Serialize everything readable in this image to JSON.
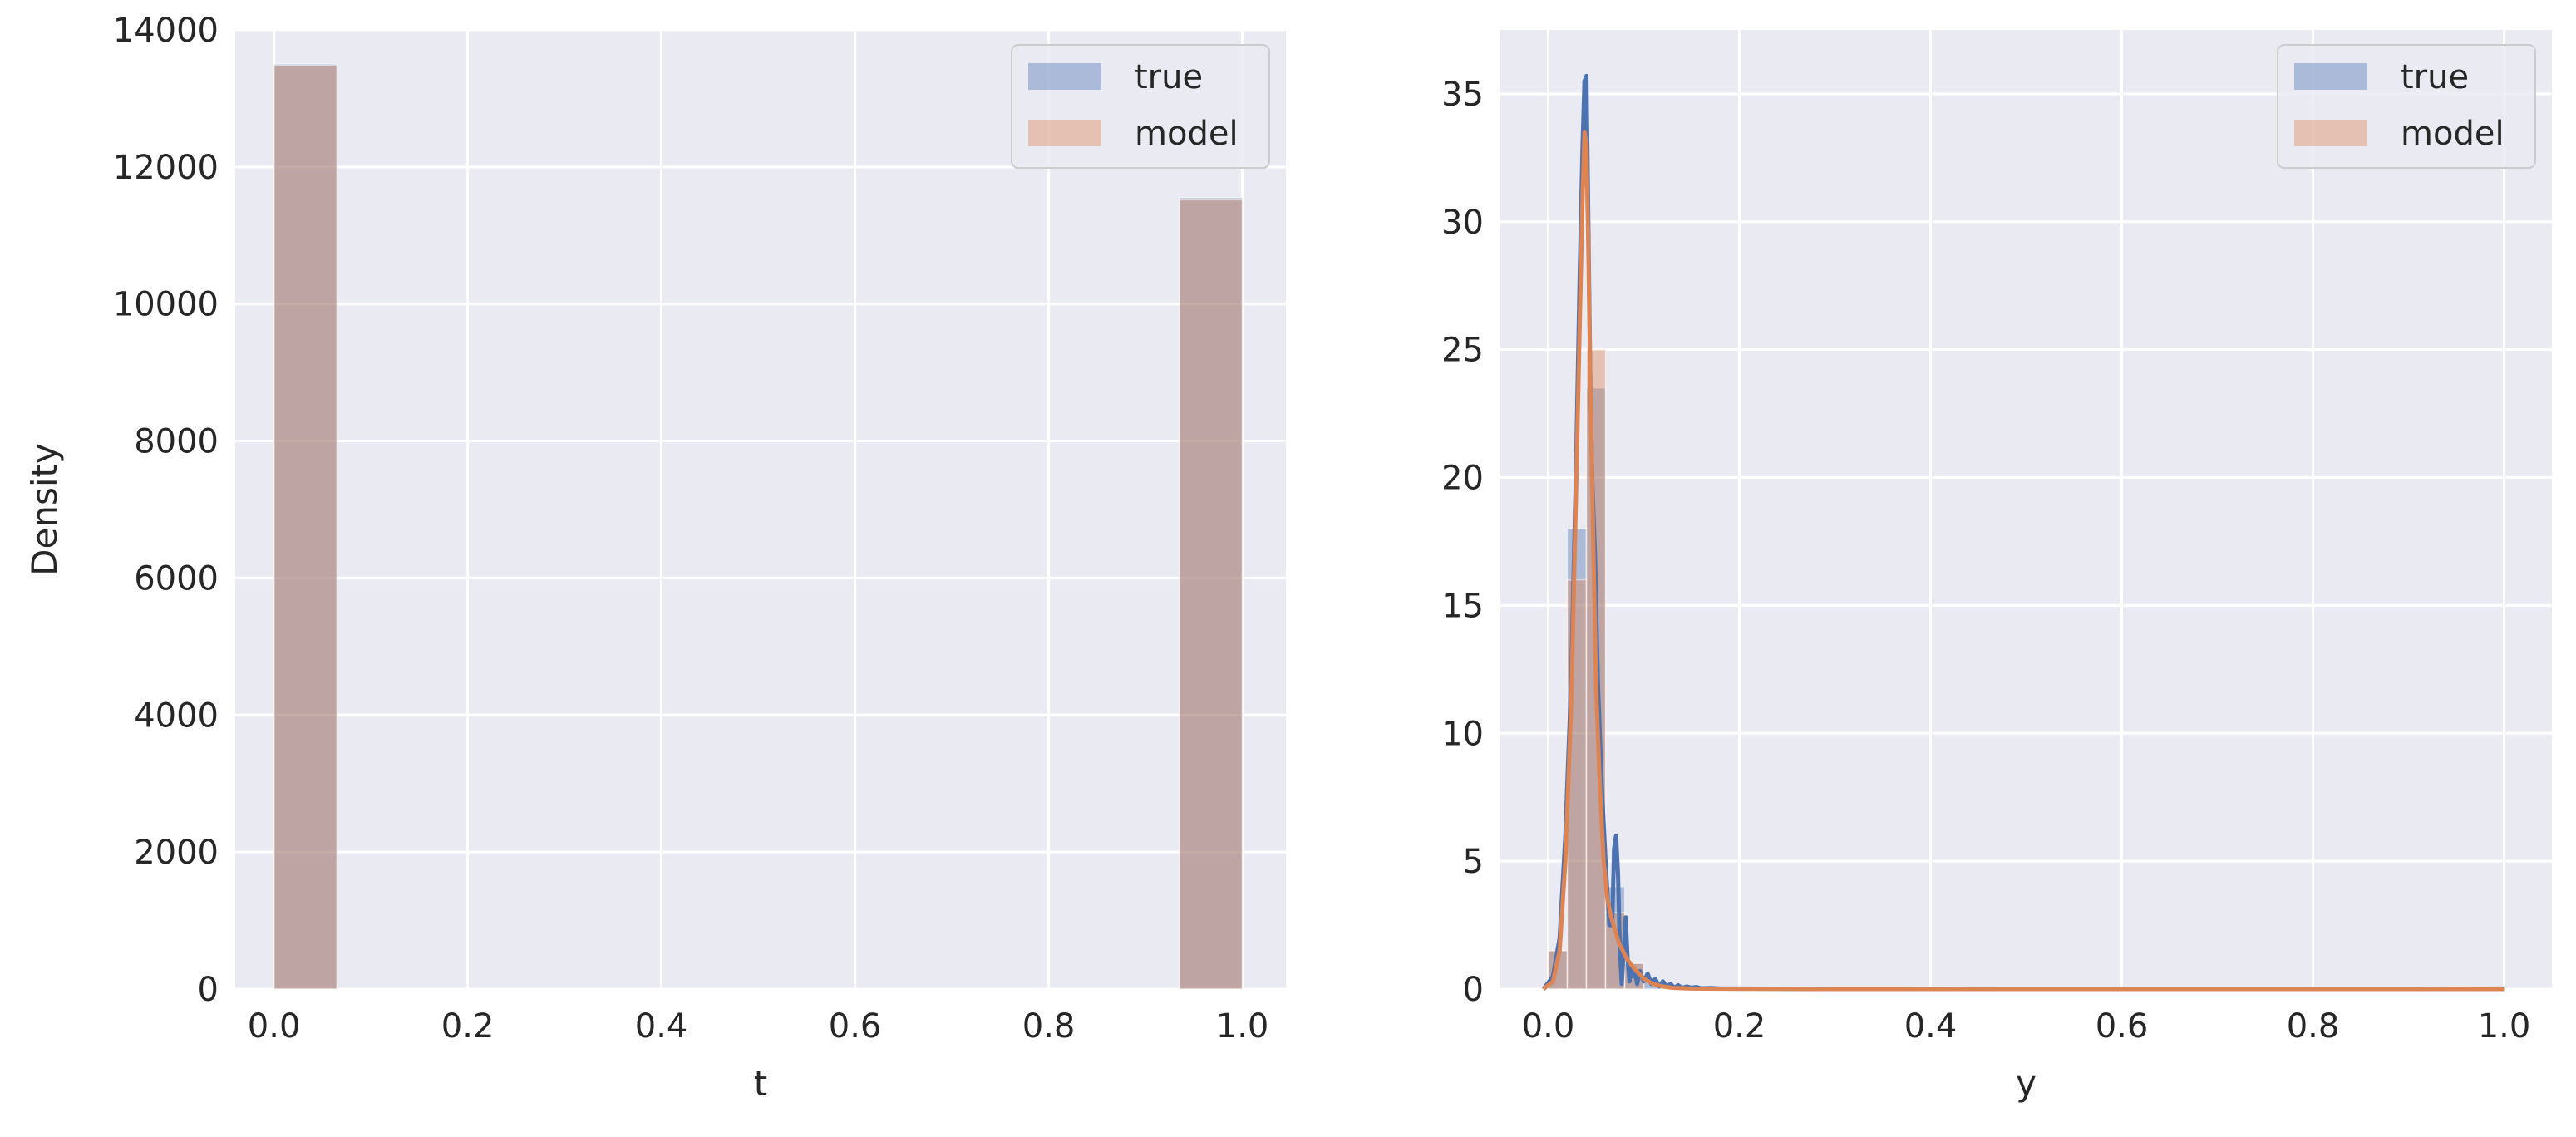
{
  "colors": {
    "background": "#eaeaf2",
    "grid": "#ffffff",
    "true": "#4c72b0",
    "model": "#dd8452"
  },
  "chart_data": [
    {
      "type": "bar",
      "xlabel": "t",
      "ylabel": "Density",
      "xlim": [
        -0.04,
        1.045
      ],
      "ylim": [
        0,
        14000
      ],
      "xticks": [
        "0.0",
        "0.2",
        "0.4",
        "0.6",
        "0.8",
        "1.0"
      ],
      "yticks": [
        "0",
        "2000",
        "4000",
        "6000",
        "8000",
        "10000",
        "12000",
        "14000"
      ],
      "grid": true,
      "legend": {
        "placement": "top-right",
        "entries": [
          "true",
          "model"
        ]
      },
      "series": [
        {
          "name": "true",
          "bins": [
            {
              "x0": 0.0,
              "x1": 0.065,
              "value": 13500
            },
            {
              "x0": 0.935,
              "x1": 1.0,
              "value": 11550
            }
          ]
        },
        {
          "name": "model",
          "bins": [
            {
              "x0": 0.0,
              "x1": 0.065,
              "value": 13480
            },
            {
              "x0": 0.935,
              "x1": 1.0,
              "value": 11520
            }
          ]
        }
      ]
    },
    {
      "type": "line",
      "xlabel": "y",
      "ylabel": "",
      "xlim": [
        -0.05,
        1.05
      ],
      "ylim": [
        0,
        37.5
      ],
      "xticks": [
        "0.0",
        "0.2",
        "0.4",
        "0.6",
        "0.8",
        "1.0"
      ],
      "yticks": [
        "0",
        "5",
        "10",
        "15",
        "20",
        "25",
        "30",
        "35"
      ],
      "grid": true,
      "legend": {
        "placement": "top-right",
        "entries": [
          "true",
          "model"
        ]
      },
      "histograms": [
        {
          "name": "true",
          "bins": [
            {
              "x0": 0.0,
              "x1": 0.02,
              "value": 1.5
            },
            {
              "x0": 0.02,
              "x1": 0.04,
              "value": 18.0
            },
            {
              "x0": 0.04,
              "x1": 0.06,
              "value": 23.5
            },
            {
              "x0": 0.06,
              "x1": 0.08,
              "value": 4.0
            },
            {
              "x0": 0.08,
              "x1": 0.1,
              "value": 1.0
            },
            {
              "x0": 0.1,
              "x1": 0.12,
              "value": 0.3
            }
          ]
        },
        {
          "name": "model",
          "bins": [
            {
              "x0": 0.0,
              "x1": 0.02,
              "value": 1.5
            },
            {
              "x0": 0.02,
              "x1": 0.04,
              "value": 16.0
            },
            {
              "x0": 0.04,
              "x1": 0.06,
              "value": 25.0
            },
            {
              "x0": 0.06,
              "x1": 0.08,
              "value": 3.0
            },
            {
              "x0": 0.08,
              "x1": 0.1,
              "value": 1.0
            }
          ]
        }
      ],
      "series": [
        {
          "name": "true",
          "x": [
            -0.005,
            0.005,
            0.012,
            0.018,
            0.024,
            0.029,
            0.033,
            0.036,
            0.038,
            0.04,
            0.042,
            0.044,
            0.046,
            0.049,
            0.052,
            0.056,
            0.06,
            0.064,
            0.067,
            0.069,
            0.071,
            0.073,
            0.075,
            0.077,
            0.079,
            0.081,
            0.083,
            0.085,
            0.087,
            0.089,
            0.091,
            0.093,
            0.096,
            0.1,
            0.104,
            0.108,
            0.112,
            0.116,
            0.12,
            0.124,
            0.128,
            0.132,
            0.136,
            0.14,
            0.145,
            0.15,
            0.155,
            0.16,
            0.17,
            0.18,
            0.2,
            0.25,
            0.3,
            0.5,
            0.7,
            0.9,
            1.0
          ],
          "y": [
            0.0,
            0.5,
            2.0,
            6.0,
            12.0,
            20.0,
            28.0,
            33.0,
            35.5,
            35.7,
            30.0,
            24.0,
            20.0,
            17.0,
            12.0,
            8.0,
            5.0,
            2.5,
            2.5,
            5.5,
            6.0,
            4.5,
            1.5,
            0.2,
            1.5,
            2.8,
            1.2,
            0.3,
            0.8,
            0.5,
            0.6,
            0.2,
            0.7,
            0.3,
            0.6,
            0.2,
            0.4,
            0.1,
            0.3,
            0.1,
            0.2,
            0.05,
            0.15,
            0.05,
            0.1,
            0.05,
            0.08,
            0.03,
            0.04,
            0.02,
            0.02,
            0.01,
            0.01,
            0.0,
            0.0,
            0.0,
            0.02
          ]
        },
        {
          "name": "model",
          "x": [
            -0.005,
            0.005,
            0.012,
            0.018,
            0.024,
            0.029,
            0.033,
            0.036,
            0.038,
            0.04,
            0.042,
            0.044,
            0.047,
            0.05,
            0.054,
            0.058,
            0.062,
            0.066,
            0.07,
            0.074,
            0.078,
            0.082,
            0.086,
            0.09,
            0.095,
            0.1,
            0.105,
            0.11,
            0.12,
            0.13,
            0.15,
            0.2,
            0.3,
            0.5,
            0.7,
            0.9,
            1.0
          ],
          "y": [
            0.0,
            0.3,
            1.5,
            5.0,
            11.0,
            19.0,
            26.0,
            31.0,
            33.5,
            33.0,
            29.0,
            24.0,
            18.0,
            12.0,
            8.0,
            5.0,
            3.5,
            2.8,
            2.3,
            1.8,
            1.5,
            1.2,
            1.0,
            0.8,
            0.6,
            0.4,
            0.3,
            0.2,
            0.1,
            0.05,
            0.02,
            0.01,
            0.0,
            0.0,
            0.0,
            0.0,
            0.0
          ]
        }
      ]
    }
  ]
}
